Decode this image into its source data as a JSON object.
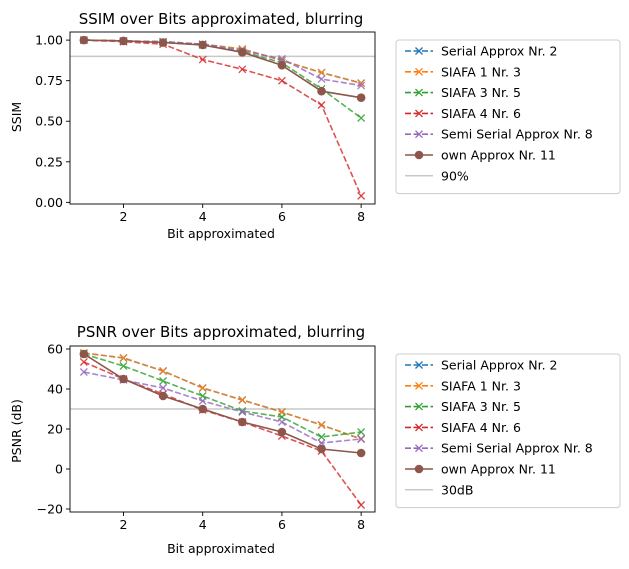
{
  "chart_data": [
    {
      "type": "line",
      "title": "SSIM over Bits approximated, blurring",
      "xlabel": "Bit approximated",
      "ylabel": "SSIM",
      "xlim": [
        0.65,
        8.35
      ],
      "ylim": [
        -0.01,
        1.05
      ],
      "xticks": [
        2,
        4,
        6,
        8
      ],
      "yticks": [
        0.0,
        0.25,
        0.5,
        0.75,
        1.0
      ],
      "ytick_labels": [
        "0.00",
        "0.25",
        "0.50",
        "0.75",
        "1.00"
      ],
      "x": [
        1,
        2,
        3,
        4,
        5,
        6,
        7,
        8
      ],
      "reference": {
        "name": "90%",
        "value": 0.9,
        "color": "#c8c8c8"
      },
      "legend_position": "outside-right",
      "series": [
        {
          "name": "Serial Approx Nr. 2",
          "color": "#1f77b4",
          "style": "dashed",
          "marker": "x",
          "values": [
            1.0,
            0.995,
            0.99,
            0.975,
            0.945,
            0.875,
            0.8,
            0.735
          ]
        },
        {
          "name": "SIAFA 1 Nr. 3",
          "color": "#ff7f0e",
          "style": "dashed",
          "marker": "x",
          "values": [
            1.0,
            0.995,
            0.99,
            0.975,
            0.945,
            0.875,
            0.8,
            0.735
          ]
        },
        {
          "name": "SIAFA 3 Nr. 5",
          "color": "#2ca02c",
          "style": "dashed",
          "marker": "x",
          "values": [
            1.0,
            0.995,
            0.985,
            0.97,
            0.93,
            0.86,
            0.7,
            0.52
          ]
        },
        {
          "name": "SIAFA 4 Nr. 6",
          "color": "#d62728",
          "style": "dashed",
          "marker": "x",
          "values": [
            1.0,
            0.99,
            0.975,
            0.88,
            0.82,
            0.75,
            0.6,
            0.04
          ]
        },
        {
          "name": " Semi Serial Approx Nr. 8",
          "color": "#9467bd",
          "style": "dashed",
          "marker": "x",
          "values": [
            1.0,
            0.995,
            0.99,
            0.975,
            0.935,
            0.885,
            0.76,
            0.72
          ]
        },
        {
          "name": "own Approx Nr. 11",
          "color": "#8c564b",
          "style": "solid",
          "marker": "o",
          "values": [
            1.0,
            0.995,
            0.985,
            0.97,
            0.925,
            0.845,
            0.685,
            0.645
          ]
        }
      ]
    },
    {
      "type": "line",
      "title": "PSNR over Bits approximated, blurring",
      "xlabel": "Bit approximated",
      "ylabel": "PSNR (dB)",
      "xlim": [
        0.65,
        8.35
      ],
      "ylim": [
        -21.5,
        61.5
      ],
      "xticks": [
        2,
        4,
        6,
        8
      ],
      "yticks": [
        -20,
        0,
        20,
        40,
        60
      ],
      "ytick_labels": [
        "−20",
        "0",
        "20",
        "40",
        "60"
      ],
      "x": [
        1,
        2,
        3,
        4,
        5,
        6,
        7,
        8
      ],
      "reference": {
        "name": "30dB",
        "value": 30,
        "color": "#c8c8c8"
      },
      "legend_position": "outside-right",
      "series": [
        {
          "name": "Serial Approx Nr. 2",
          "color": "#1f77b4",
          "style": "dashed",
          "marker": "x",
          "values": [
            58,
            55.5,
            49,
            40.5,
            34.5,
            28.5,
            22,
            15
          ]
        },
        {
          "name": "SIAFA 1 Nr. 3",
          "color": "#ff7f0e",
          "style": "dashed",
          "marker": "x",
          "values": [
            58,
            55.5,
            49,
            40.5,
            34.5,
            28.5,
            22,
            15
          ]
        },
        {
          "name": "SIAFA 3 Nr. 5",
          "color": "#2ca02c",
          "style": "dashed",
          "marker": "x",
          "values": [
            57.5,
            51.5,
            44,
            36.5,
            29,
            26,
            16,
            18.5
          ]
        },
        {
          "name": "SIAFA 4 Nr. 6",
          "color": "#d62728",
          "style": "dashed",
          "marker": "x",
          "values": [
            53.5,
            45,
            37.5,
            29.5,
            23.5,
            16.5,
            9,
            -18
          ]
        },
        {
          "name": " Semi Serial Approx Nr. 8",
          "color": "#9467bd",
          "style": "dashed",
          "marker": "x",
          "values": [
            48.5,
            44.5,
            40.5,
            34,
            28.5,
            23.5,
            13,
            15
          ]
        },
        {
          "name": "own Approx Nr. 11",
          "color": "#8c564b",
          "style": "solid",
          "marker": "o",
          "values": [
            57.5,
            45,
            36.5,
            30,
            23.5,
            18.5,
            10,
            8
          ]
        }
      ]
    }
  ]
}
